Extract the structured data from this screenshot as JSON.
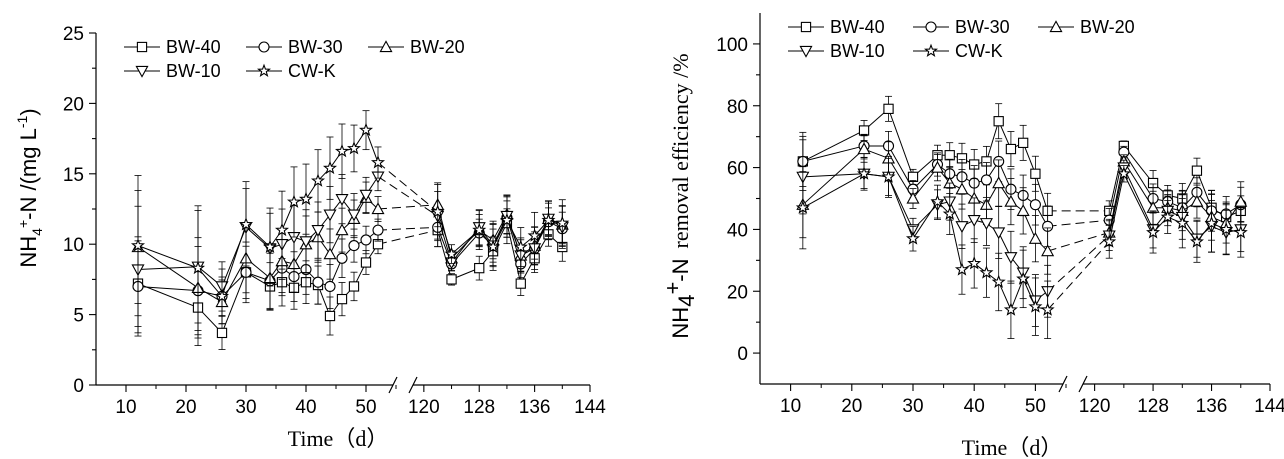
{
  "chart_data": [
    {
      "type": "line",
      "ylabel_parts": {
        "species": "NH",
        "sub": "4",
        "sup": "+",
        "rest": "-N /(mg L",
        "sup2": "-1",
        "close": ")"
      },
      "xlabel": "Time（d）",
      "ylim": [
        0,
        25
      ],
      "yticks": [
        0,
        5,
        10,
        15,
        20,
        25
      ],
      "x_break": {
        "left": [
          5,
          55
        ],
        "right": [
          118,
          144
        ]
      },
      "xticks": [
        10,
        20,
        30,
        40,
        50,
        120,
        128,
        136,
        144
      ],
      "legend_position": "top-left",
      "x": [
        12,
        22,
        26,
        30,
        34,
        36,
        38,
        40,
        42,
        44,
        46,
        48,
        50,
        52,
        122,
        124,
        128,
        130,
        132,
        134,
        136,
        138,
        140
      ],
      "series": [
        {
          "name": "BW-40",
          "marker": "square",
          "values": [
            7.2,
            5.5,
            3.7,
            8.0,
            7.0,
            7.3,
            6.9,
            7.3,
            7.1,
            4.9,
            6.1,
            7.0,
            8.7,
            10.0,
            11.0,
            7.5,
            8.3,
            9.5,
            11.5,
            7.2,
            9.0,
            10.7,
            9.8
          ]
        },
        {
          "name": "BW-30",
          "marker": "circle",
          "values": [
            7.0,
            6.7,
            6.3,
            8.0,
            7.4,
            8.3,
            7.7,
            8.2,
            7.3,
            7.0,
            9.0,
            9.9,
            10.3,
            11.0,
            11.2,
            8.6,
            10.8,
            9.9,
            11.9,
            8.6,
            9.7,
            11.6,
            11.1
          ]
        },
        {
          "name": "BW-20",
          "marker": "triangle-up",
          "values": [
            9.8,
            6.9,
            5.9,
            9.0,
            7.6,
            8.8,
            8.6,
            10.0,
            10.5,
            9.3,
            11.0,
            11.8,
            13.3,
            12.5,
            12.8,
            9.0,
            11.0,
            10.3,
            12.1,
            9.2,
            9.9,
            11.8,
            11.4
          ]
        },
        {
          "name": "BW-10",
          "marker": "triangle-down",
          "values": [
            8.2,
            8.4,
            7.0,
            11.2,
            9.7,
            10.0,
            10.5,
            10.2,
            11.0,
            12.1,
            13.2,
            12.1,
            13.5,
            14.8,
            12.0,
            8.7,
            11.2,
            9.9,
            12.0,
            9.2,
            9.7,
            11.8,
            11.2
          ]
        },
        {
          "name": "CW-K",
          "marker": "star",
          "values": [
            9.9,
            8.3,
            6.3,
            11.4,
            9.8,
            11.0,
            13.0,
            13.2,
            14.5,
            15.4,
            16.6,
            16.8,
            18.1,
            15.8,
            12.3,
            9.3,
            11.0,
            9.8,
            11.7,
            9.8,
            10.6,
            11.7,
            11.5
          ]
        }
      ]
    },
    {
      "type": "line",
      "ylabel_parts": {
        "species": "NH",
        "sub": "4",
        "sup": "+",
        "rest": "-N",
        "serif": "removal efficiency /%"
      },
      "xlabel": "Time（d）",
      "ylim": [
        -10,
        110
      ],
      "yticks": [
        0,
        20,
        40,
        60,
        80,
        100
      ],
      "x_break": {
        "left": [
          5,
          55
        ],
        "right": [
          118,
          144
        ]
      },
      "xticks": [
        10,
        20,
        30,
        40,
        50,
        120,
        128,
        136,
        144
      ],
      "legend_position": "top-left",
      "x": [
        12,
        22,
        26,
        30,
        34,
        36,
        38,
        40,
        42,
        44,
        46,
        48,
        50,
        52,
        122,
        124,
        128,
        130,
        132,
        134,
        136,
        138,
        140
      ],
      "series": [
        {
          "name": "BW-40",
          "marker": "square",
          "values": [
            62,
            72,
            79,
            57,
            64,
            64,
            63,
            61,
            62,
            75,
            66,
            68,
            58,
            46,
            46,
            67,
            55,
            51,
            50,
            59,
            47,
            44,
            46
          ]
        },
        {
          "name": "BW-30",
          "marker": "circle",
          "values": [
            62,
            67,
            67,
            53,
            61,
            58,
            57,
            55,
            56,
            62,
            53,
            51,
            48,
            41,
            43,
            65,
            50,
            49,
            47,
            52,
            46,
            45,
            48
          ]
        },
        {
          "name": "BW-20",
          "marker": "triangle-up",
          "values": [
            48,
            66,
            63,
            50,
            60,
            55,
            53,
            50,
            48,
            55,
            49,
            46,
            37,
            33,
            39,
            62,
            47,
            47,
            46,
            49,
            44,
            42,
            49
          ]
        },
        {
          "name": "BW-10",
          "marker": "triangle-down",
          "values": [
            57,
            58,
            57,
            40,
            48,
            49,
            41,
            43,
            42,
            39,
            31,
            26,
            17,
            20,
            38,
            60,
            40,
            46,
            44,
            37,
            41,
            39,
            40
          ]
        },
        {
          "name": "CW-K",
          "marker": "star",
          "values": [
            47,
            58,
            57,
            37,
            49,
            45,
            27,
            29,
            26,
            23,
            14,
            24,
            15,
            14,
            36,
            58,
            39,
            44,
            42,
            36,
            42,
            40,
            39
          ]
        }
      ]
    }
  ]
}
